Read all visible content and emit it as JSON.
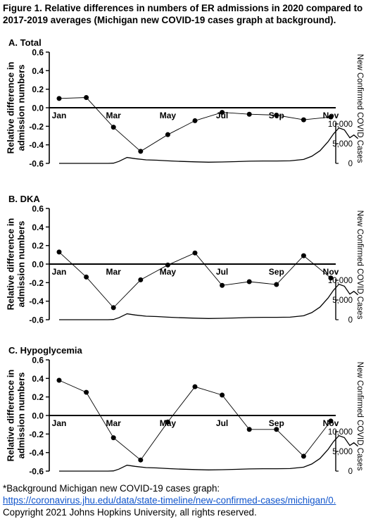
{
  "figure": {
    "title": "Figure 1. Relative differences in numbers of ER admissions in 2020 compared to 2017-2019 averages (Michigan new COVID-19 cases graph at background).",
    "footnote": {
      "line1": "*Background Michigan new COVID-19 cases graph:",
      "link": "https://coronavirus.jhu.edu/data/state-timeline/new-confirmed-cases/michigan/0.",
      "copyright": "Copyright 2021 Johns Hopkins University, all rights reserved."
    }
  },
  "chart_data": [
    {
      "type": "line",
      "title": "A. Total",
      "ylabel": "Relative difference in admission numbers",
      "ylim": [
        -0.6,
        0.6
      ],
      "yticks": [
        "0.6",
        "0.4",
        "0.2",
        "0.0",
        "-0.2",
        "-0.4",
        "-0.6"
      ],
      "month_labels": [
        "Jan",
        "Mar",
        "May",
        "Jul",
        "Sep",
        "Nov"
      ],
      "y2label": "New Confirmed COVID Cases",
      "y2ticks": [
        "10,000",
        "5,000",
        "0"
      ],
      "y2lim": [
        0,
        10000
      ],
      "series": [
        {
          "x": [
            1,
            2,
            3,
            4,
            5,
            6,
            7,
            8,
            9,
            10,
            11
          ],
          "y": [
            0.1,
            0.11,
            -0.21,
            -0.47,
            -0.29,
            -0.14,
            -0.05,
            -0.07,
            -0.08,
            -0.13,
            -0.1
          ]
        }
      ],
      "background_cases": {
        "x": [
          1,
          2,
          2.5,
          2.8,
          3.0,
          3.2,
          3.5,
          3.8,
          4.2,
          4.6,
          5,
          5.5,
          6,
          6.5,
          7,
          7.5,
          8,
          8.5,
          9,
          9.5,
          10,
          10.3,
          10.6,
          10.9,
          11.1,
          11.3,
          11.5,
          11.7,
          11.85,
          12
        ],
        "y": [
          0,
          0,
          0,
          0,
          50,
          500,
          1500,
          1200,
          900,
          800,
          650,
          500,
          400,
          300,
          350,
          450,
          550,
          600,
          600,
          650,
          1000,
          1800,
          3200,
          5500,
          7500,
          9000,
          8500,
          6500,
          7200,
          6300
        ]
      }
    },
    {
      "type": "line",
      "title": "B. DKA",
      "ylabel": "Relative difference in admission numbers",
      "ylim": [
        -0.6,
        0.6
      ],
      "yticks": [
        "0.6",
        "0.4",
        "0.2",
        "0.0",
        "-0.2",
        "-0.4",
        "-0.6"
      ],
      "month_labels": [
        "Jan",
        "Mar",
        "May",
        "Jul",
        "Sep",
        "Nov"
      ],
      "y2label": "New Confirmed COVID Cases",
      "y2ticks": [
        "10,000",
        "5,000",
        "0"
      ],
      "y2lim": [
        0,
        10000
      ],
      "series": [
        {
          "x": [
            1,
            2,
            3,
            4,
            5,
            6,
            7,
            8,
            9,
            10,
            11
          ],
          "y": [
            0.13,
            -0.14,
            -0.47,
            -0.17,
            -0.01,
            0.12,
            -0.23,
            -0.19,
            -0.22,
            0.09,
            -0.15
          ]
        }
      ],
      "background_cases": {
        "x": [
          1,
          2,
          2.5,
          2.8,
          3.0,
          3.2,
          3.5,
          3.8,
          4.2,
          4.6,
          5,
          5.5,
          6,
          6.5,
          7,
          7.5,
          8,
          8.5,
          9,
          9.5,
          10,
          10.3,
          10.6,
          10.9,
          11.1,
          11.3,
          11.5,
          11.7,
          11.85,
          12
        ],
        "y": [
          0,
          0,
          0,
          0,
          50,
          500,
          1500,
          1200,
          900,
          800,
          650,
          500,
          400,
          300,
          350,
          450,
          550,
          600,
          600,
          650,
          1000,
          1800,
          3200,
          5500,
          7500,
          9000,
          8500,
          6500,
          7200,
          6300
        ]
      }
    },
    {
      "type": "line",
      "title": "C. Hypoglycemia",
      "ylabel": "Relative difference in admission numbers",
      "ylim": [
        -0.6,
        0.6
      ],
      "yticks": [
        "0.6",
        "0.4",
        "0.2",
        "0.0",
        "-0.2",
        "-0.4",
        "-0.6"
      ],
      "month_labels": [
        "Jan",
        "Mar",
        "May",
        "Jul",
        "Sep",
        "Nov"
      ],
      "y2label": "New Confirmed COVID Cases",
      "y2ticks": [
        "10,000",
        "5,000",
        "0"
      ],
      "y2lim": [
        0,
        10000
      ],
      "series": [
        {
          "x": [
            1,
            2,
            3,
            4,
            5,
            6,
            7,
            8,
            9,
            10,
            11
          ],
          "y": [
            0.38,
            0.25,
            -0.24,
            -0.48,
            -0.07,
            0.31,
            0.22,
            -0.15,
            -0.15,
            -0.44,
            -0.06
          ]
        }
      ],
      "background_cases": {
        "x": [
          1,
          2,
          2.5,
          2.8,
          3.0,
          3.2,
          3.5,
          3.8,
          4.2,
          4.6,
          5,
          5.5,
          6,
          6.5,
          7,
          7.5,
          8,
          8.5,
          9,
          9.5,
          10,
          10.3,
          10.6,
          10.9,
          11.1,
          11.3,
          11.5,
          11.7,
          11.85,
          12
        ],
        "y": [
          0,
          0,
          0,
          0,
          50,
          500,
          1500,
          1200,
          900,
          800,
          650,
          500,
          400,
          300,
          350,
          450,
          550,
          600,
          600,
          650,
          1000,
          1800,
          3200,
          5500,
          7500,
          9000,
          8500,
          6500,
          7200,
          6300
        ]
      }
    }
  ]
}
